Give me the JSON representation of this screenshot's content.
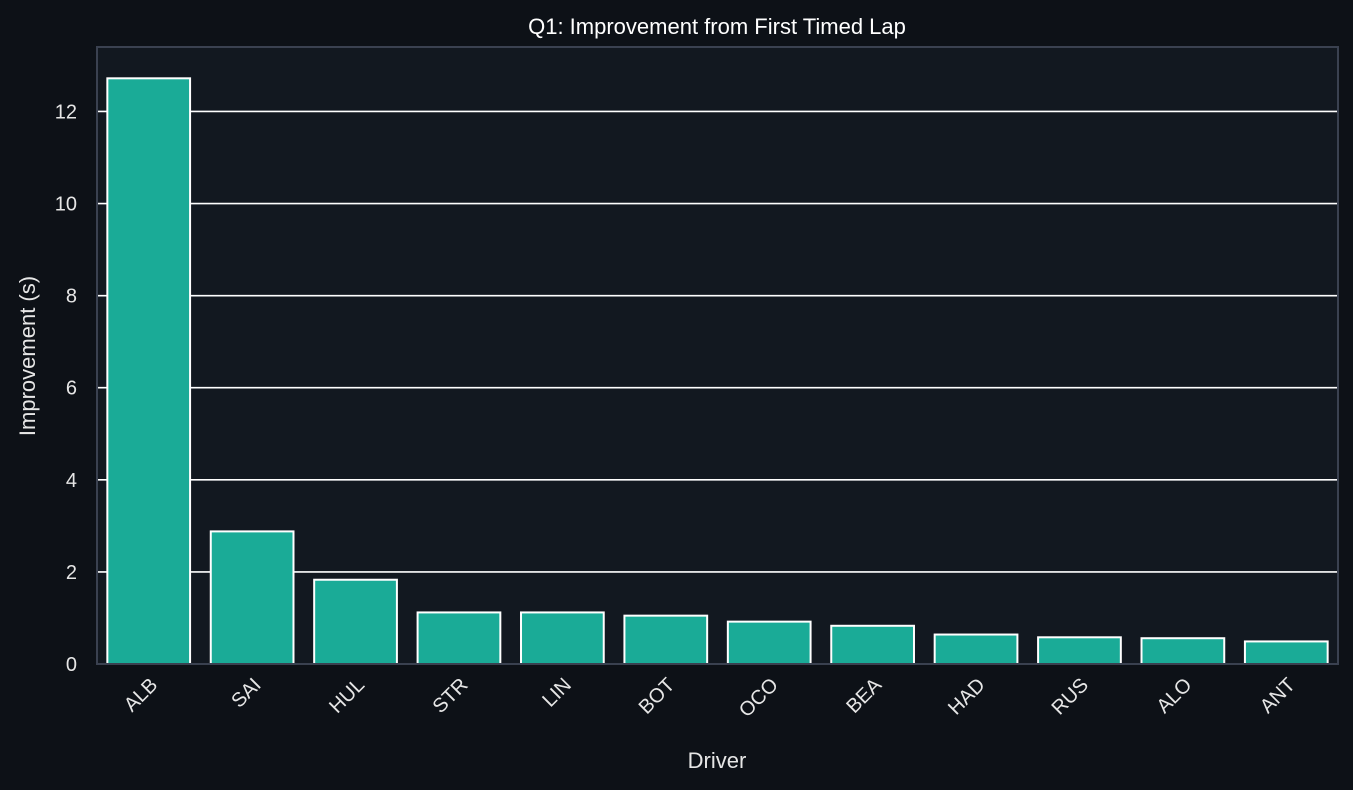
{
  "chart_data": {
    "type": "bar",
    "title": "Q1: Improvement from First Timed Lap",
    "xlabel": "Driver",
    "ylabel": "Improvement (s)",
    "categories": [
      "ALB",
      "SAI",
      "HUL",
      "STR",
      "LIN",
      "BOT",
      "OCO",
      "BEA",
      "HAD",
      "RUS",
      "ALO",
      "ANT"
    ],
    "values": [
      12.72,
      2.88,
      1.83,
      1.12,
      1.12,
      1.05,
      0.92,
      0.83,
      0.64,
      0.58,
      0.56,
      0.49
    ],
    "yticks": [
      "0",
      "2",
      "4",
      "6",
      "8",
      "10",
      "12"
    ],
    "ylim": [
      0,
      13.4
    ],
    "grid": "horizontal",
    "legend": "none",
    "colors": {
      "bar": "#1aab97",
      "bar_edge": "#ffffff",
      "plot_bg": "#121820",
      "figure_bg": "#0d1117",
      "grid": "#ffffff",
      "spine": "#3a4150",
      "text": "#e6e6e6"
    }
  }
}
